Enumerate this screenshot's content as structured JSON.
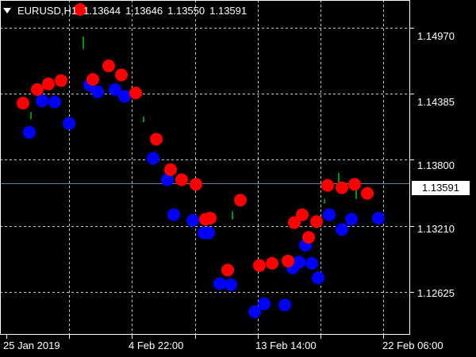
{
  "header": {
    "symbol": "EURUSD,H1",
    "open": "1.13644",
    "high": "1.13646",
    "low": "1.13550",
    "close": "1.13591"
  },
  "current_price_label": "1.13591",
  "colors": {
    "background": "#000000",
    "axis": "#ffffff",
    "grid": "#c8c8c8",
    "bid_line": "#6e7f8e",
    "sell_dot": "#ff0000",
    "buy_dot": "#0000ff",
    "candle": "#00ff00"
  },
  "chart_data": {
    "type": "scatter",
    "y_ticks": [
      "1.14970",
      "1.14385",
      "1.13800",
      "1.13210",
      "1.12625"
    ],
    "y_tick_values": [
      1.1497,
      1.14385,
      1.138,
      1.1321,
      1.12625
    ],
    "x_ticks": [
      "25 Jan 2019",
      "4 Feb 22:00",
      "13 Feb 14:00",
      "22 Feb 06:00"
    ],
    "ylim": [
      1.1226,
      1.152
    ],
    "grid": true,
    "current_price": 1.13591,
    "series": [
      {
        "marker": "red",
        "points": [
          [
            0.5,
            1.143
          ],
          [
            0.95,
            1.1442
          ],
          [
            1.3,
            1.1447
          ],
          [
            1.7,
            1.145
          ],
          [
            2.3,
            1.1513
          ],
          [
            2.7,
            1.1451
          ],
          [
            3.2,
            1.1463
          ],
          [
            3.6,
            1.1455
          ],
          [
            4.05,
            1.1439
          ],
          [
            4.7,
            1.1398
          ],
          [
            5.15,
            1.1371
          ],
          [
            5.5,
            1.1362
          ],
          [
            5.95,
            1.1358
          ],
          [
            6.25,
            1.1327
          ],
          [
            6.4,
            1.1328
          ],
          [
            6.95,
            1.1282
          ],
          [
            7.35,
            1.1344
          ],
          [
            7.95,
            1.1286
          ],
          [
            8.35,
            1.1288
          ],
          [
            8.85,
            1.129
          ],
          [
            9.05,
            1.1324
          ],
          [
            9.3,
            1.1331
          ],
          [
            9.5,
            1.1311
          ],
          [
            9.75,
            1.1325
          ],
          [
            10.1,
            1.1357
          ],
          [
            10.55,
            1.1355
          ],
          [
            10.95,
            1.1358
          ],
          [
            11.35,
            1.135
          ]
        ],
        "values": [
          1.143,
          1.1442,
          1.1447,
          1.145,
          1.1513,
          1.1451,
          1.1463,
          1.1455,
          1.1439,
          1.1398,
          1.1371,
          1.1362,
          1.1358,
          1.1327,
          1.1328,
          1.1282,
          1.1344,
          1.1286,
          1.1288,
          1.129,
          1.1324,
          1.1331,
          1.1311,
          1.1325,
          1.1357,
          1.1355,
          1.1358,
          1.135
        ]
      },
      {
        "marker": "blue",
        "points": [
          [
            0.7,
            1.1404
          ],
          [
            1.1,
            1.1432
          ],
          [
            1.5,
            1.1431
          ],
          [
            1.95,
            1.1412
          ],
          [
            2.6,
            1.1446
          ],
          [
            2.85,
            1.144
          ],
          [
            3.4,
            1.1442
          ],
          [
            3.7,
            1.1436
          ],
          [
            4.6,
            1.1381
          ],
          [
            5.05,
            1.1362
          ],
          [
            5.25,
            1.1331
          ],
          [
            5.85,
            1.1326
          ],
          [
            6.2,
            1.1315
          ],
          [
            6.35,
            1.1315
          ],
          [
            6.7,
            1.127
          ],
          [
            7.05,
            1.1269
          ],
          [
            7.8,
            1.1245
          ],
          [
            8.1,
            1.1252
          ],
          [
            8.75,
            1.1251
          ],
          [
            9.0,
            1.1284
          ],
          [
            9.2,
            1.1289
          ],
          [
            9.4,
            1.1304
          ],
          [
            9.6,
            1.1288
          ],
          [
            9.8,
            1.1275
          ],
          [
            10.15,
            1.1331
          ],
          [
            10.55,
            1.1318
          ],
          [
            10.85,
            1.1327
          ],
          [
            11.7,
            1.1328
          ]
        ],
        "values": [
          1.1404,
          1.1432,
          1.1431,
          1.1412,
          1.1446,
          1.144,
          1.1442,
          1.1436,
          1.1381,
          1.1362,
          1.1331,
          1.1326,
          1.1315,
          1.1315,
          1.127,
          1.1269,
          1.1245,
          1.1252,
          1.1251,
          1.1284,
          1.1289,
          1.1304,
          1.1288,
          1.1275,
          1.1331,
          1.1318,
          1.1327,
          1.1328
        ]
      },
      {
        "marker": "candle",
        "segments": [
          [
            0.75,
            1.1422,
            1.1416
          ],
          [
            2.4,
            1.1489,
            1.1478
          ],
          [
            4.3,
            1.1418,
            1.1413
          ],
          [
            5.4,
            1.1367,
            1.1363
          ],
          [
            7.1,
            1.1334,
            1.1327
          ],
          [
            10.0,
            1.1345,
            1.1341
          ],
          [
            10.45,
            1.1368,
            1.1353
          ],
          [
            10.7,
            1.1359,
            1.1353
          ],
          [
            11.0,
            1.1353,
            1.1345
          ]
        ]
      }
    ]
  }
}
